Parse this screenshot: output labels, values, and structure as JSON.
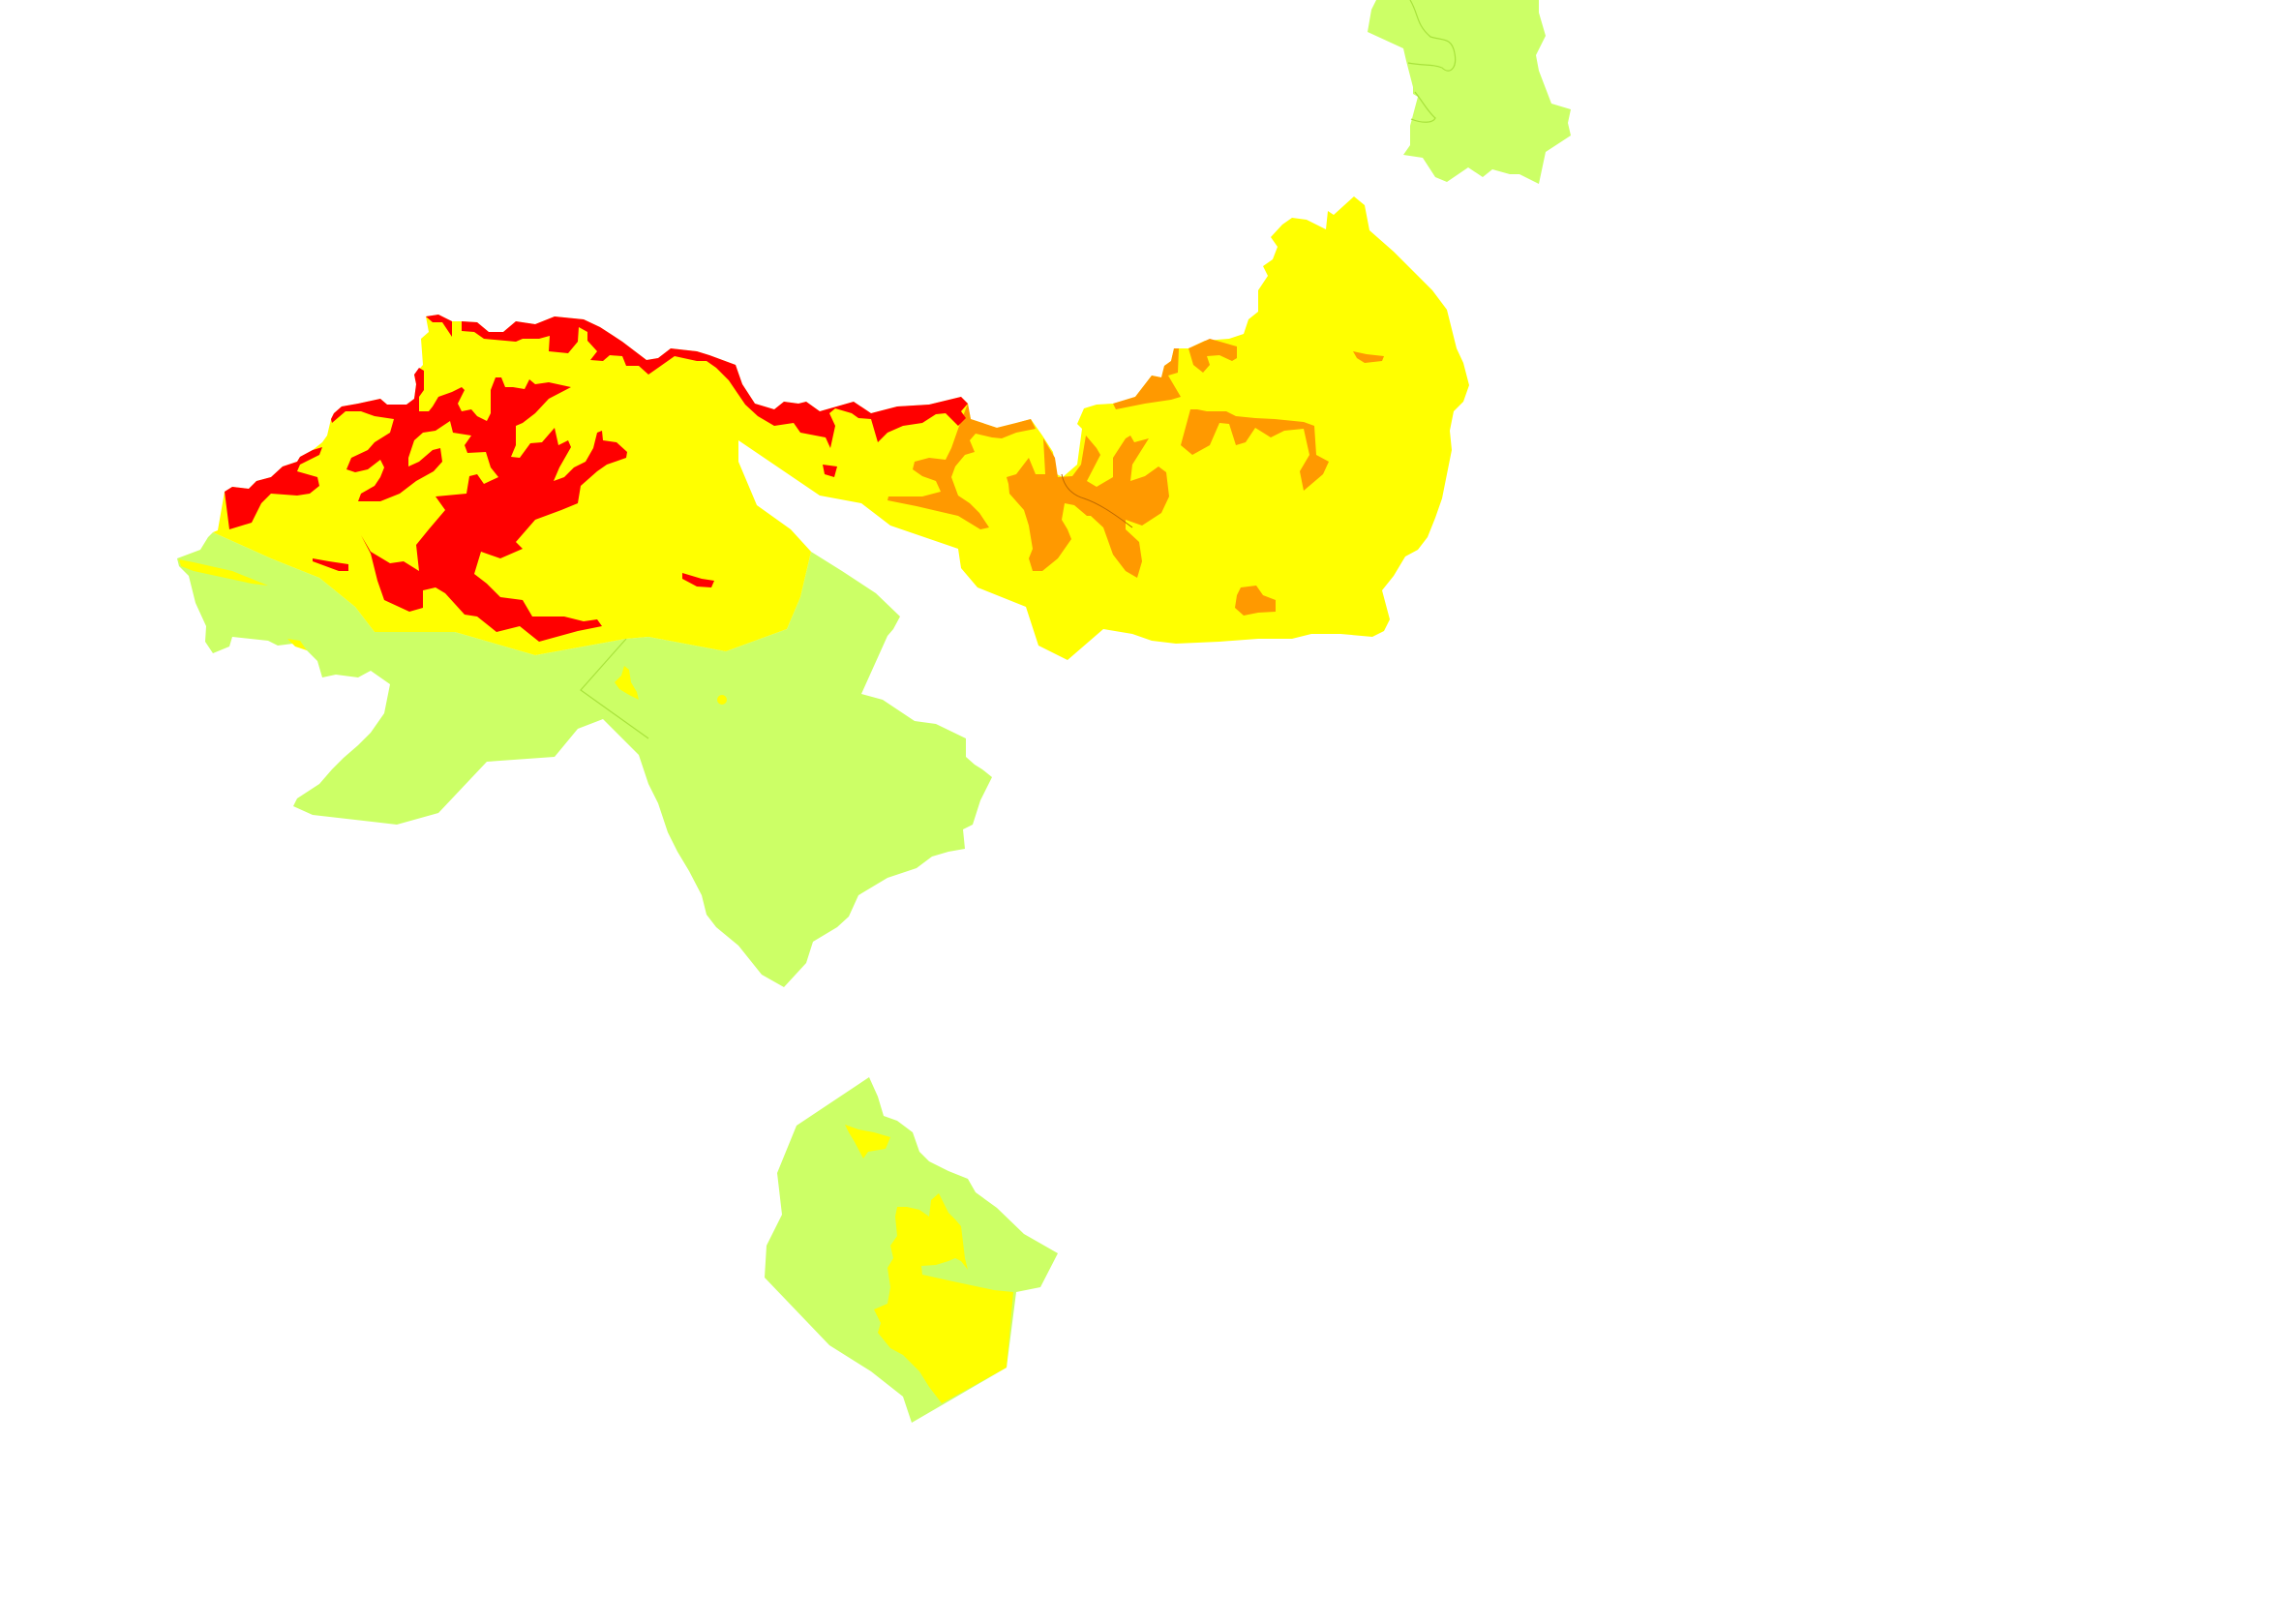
{
  "map": {
    "background": "#FFFFFF",
    "fill_colors": {
      "green": "#CCFF66",
      "yellow": "#FFFF00",
      "orange": "#FF9900",
      "red": "#FF0000"
    },
    "inner_boundary_color": "#A8E23C"
  }
}
